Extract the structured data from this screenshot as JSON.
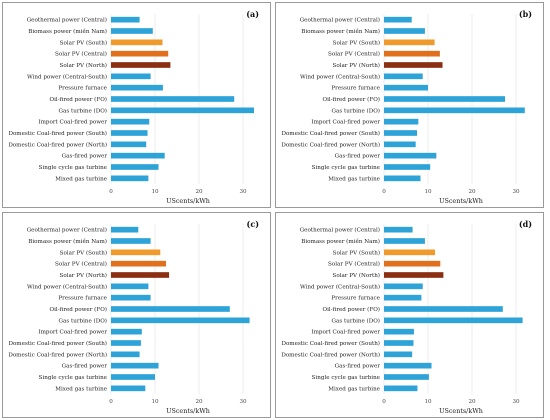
{
  "colors": {
    "default": "#2ea3d7",
    "south": "#f09a2b",
    "central": "#e0701c",
    "north": "#8b2f12"
  },
  "chart_data": [
    {
      "type": "bar",
      "orientation": "horizontal",
      "panel": "(a)",
      "xlabel": "UScents/kWh",
      "xlim": [
        0,
        35
      ],
      "xticks": [
        0,
        10,
        20,
        30
      ],
      "categories": [
        "Geothermal power (Central)",
        "Biomass power (miền Nam)",
        "Solar PV (South)",
        "Solar PV (Central)",
        "Solar PV (North)",
        "Wind power (Central-South)",
        "Pressure furnace",
        "Oil-fired power (FO)",
        "Gas turbine (DO)",
        "Import Coal-fired power",
        "Domestic Coal-fired power (South)",
        "Domestic Coal-fired power (North)",
        "Gas-fired power",
        "Single cycle gas turbine",
        "Mixed gas turbine"
      ],
      "values": [
        6.5,
        9.5,
        11.7,
        13.0,
        13.5,
        9.0,
        11.8,
        28.0,
        32.5,
        8.7,
        8.3,
        8.0,
        12.2,
        10.8,
        8.5
      ],
      "bar_colors": [
        "default",
        "default",
        "south",
        "central",
        "north",
        "default",
        "default",
        "default",
        "default",
        "default",
        "default",
        "default",
        "default",
        "default",
        "default"
      ]
    },
    {
      "type": "bar",
      "orientation": "horizontal",
      "panel": "(b)",
      "xlabel": "UScents/kWh",
      "xlim": [
        0,
        35
      ],
      "xticks": [
        0,
        10,
        20,
        30
      ],
      "categories": [
        "Geothermal power (Central)",
        "Biomass power (miền Nam)",
        "Solar PV (South)",
        "Solar PV (Central)",
        "Solar PV (North)",
        "Wind power (Central-South)",
        "Pressure furnace",
        "Oil-fired power (FO)",
        "Gas turbine (DO)",
        "Import Coal-fired power",
        "Domestic Coal-fired power (South)",
        "Domestic Coal-fired power (North)",
        "Gas-fired power",
        "Single cycle gas turbine",
        "Mixed gas turbine"
      ],
      "values": [
        6.3,
        9.3,
        11.5,
        12.7,
        13.3,
        8.8,
        10.0,
        27.5,
        32.0,
        7.8,
        7.5,
        7.2,
        11.9,
        10.5,
        8.3
      ],
      "bar_colors": [
        "default",
        "default",
        "south",
        "central",
        "north",
        "default",
        "default",
        "default",
        "default",
        "default",
        "default",
        "default",
        "default",
        "default",
        "default"
      ]
    },
    {
      "type": "bar",
      "orientation": "horizontal",
      "panel": "(c)",
      "xlabel": "UScents/kWh",
      "xlim": [
        0,
        35
      ],
      "xticks": [
        0,
        10,
        20,
        30
      ],
      "categories": [
        "Geothermal power (Central)",
        "Biomass power (miền Nam)",
        "Solar PV (South)",
        "Solar PV (Central)",
        "Solar PV (North)",
        "Wind power (Central-South)",
        "Pressure furnace",
        "Oil-fired power (FO)",
        "Gas turbine (DO)",
        "Import Coal-fired power",
        "Domestic Coal-fired power (South)",
        "Domestic Coal-fired power (North)",
        "Gas-fired power",
        "Single cycle gas turbine",
        "Mixed gas turbine"
      ],
      "values": [
        6.2,
        9.0,
        11.2,
        12.5,
        13.2,
        8.5,
        9.0,
        27.0,
        31.5,
        7.0,
        6.8,
        6.5,
        10.8,
        10.0,
        7.8
      ],
      "bar_colors": [
        "default",
        "default",
        "south",
        "central",
        "north",
        "default",
        "default",
        "default",
        "default",
        "default",
        "default",
        "default",
        "default",
        "default",
        "default"
      ]
    },
    {
      "type": "bar",
      "orientation": "horizontal",
      "panel": "(d)",
      "xlabel": "UScents/kWh",
      "xlim": [
        0,
        35
      ],
      "xticks": [
        0,
        10,
        20,
        30
      ],
      "categories": [
        "Geothermal power (Central)",
        "Biomass power (miền Nam)",
        "Solar PV (South)",
        "Solar PV (Central)",
        "Solar PV (North)",
        "Wind power (Central-South)",
        "Pressure furnace",
        "Oil-fired power (FO)",
        "Gas turbine (DO)",
        "Import Coal-fired power",
        "Domestic Coal-fired power (South)",
        "Domestic Coal-fired power (North)",
        "Gas-fired power",
        "Single cycle gas turbine",
        "Mixed gas turbine"
      ],
      "values": [
        6.5,
        9.3,
        11.6,
        12.8,
        13.5,
        8.8,
        8.5,
        27.0,
        31.5,
        6.8,
        6.7,
        6.4,
        10.8,
        10.2,
        7.6
      ],
      "bar_colors": [
        "default",
        "default",
        "south",
        "central",
        "north",
        "default",
        "default",
        "default",
        "default",
        "default",
        "default",
        "default",
        "default",
        "default",
        "default"
      ]
    }
  ]
}
